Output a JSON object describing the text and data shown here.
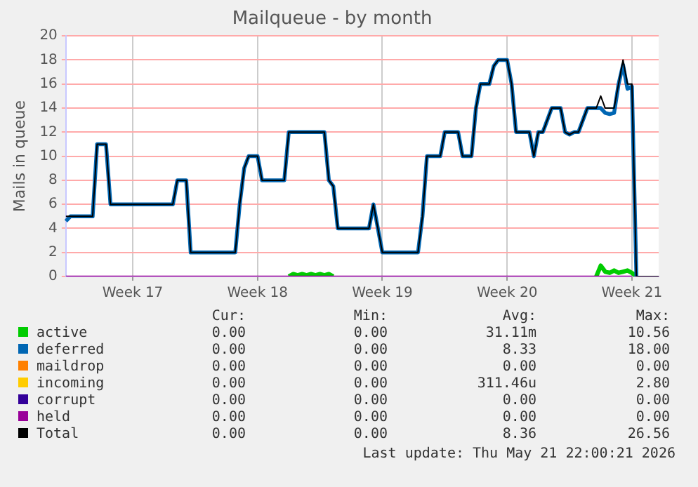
{
  "chart_data": {
    "type": "line",
    "title": "Mailqueue - by month",
    "ylabel": "Mails in queue",
    "categories": [
      null,
      null,
      null,
      null,
      null,
      null,
      null,
      null,
      null,
      null,
      null,
      null,
      null,
      null,
      null,
      "Week 17",
      null,
      null,
      null,
      null,
      null,
      null,
      null,
      null,
      null,
      null,
      null,
      null,
      null,
      null,
      null,
      null,
      null,
      null,
      null,
      null,
      null,
      null,
      null,
      null,
      null,
      null,
      null,
      "Week 18",
      null,
      null,
      null,
      null,
      null,
      null,
      null,
      null,
      null,
      null,
      null,
      null,
      null,
      null,
      null,
      null,
      null,
      null,
      null,
      null,
      null,
      null,
      null,
      null,
      null,
      null,
      null,
      "Week 19",
      null,
      null,
      null,
      null,
      null,
      null,
      null,
      null,
      null,
      null,
      null,
      null,
      null,
      null,
      null,
      null,
      null,
      null,
      null,
      null,
      null,
      null,
      null,
      null,
      null,
      null,
      null,
      "Week 20",
      null,
      null,
      null,
      null,
      null,
      null,
      null,
      null,
      null,
      null,
      null,
      null,
      null,
      null,
      null,
      null,
      null,
      null,
      null,
      null,
      null,
      null,
      null,
      null,
      null,
      null,
      null,
      "Week 21",
      null,
      null,
      null,
      null,
      null,
      null
    ],
    "ylim": [
      0,
      20
    ],
    "yticks": [
      0,
      2,
      4,
      6,
      8,
      10,
      12,
      14,
      16,
      18,
      20
    ],
    "grid": true,
    "legend": "bottom",
    "marker": "none",
    "line_style": "solid",
    "series": [
      {
        "name": "active",
        "color": "#00cc00",
        "values": [
          null,
          null,
          null,
          null,
          null,
          null,
          null,
          null,
          null,
          null,
          null,
          null,
          null,
          null,
          null,
          null,
          null,
          null,
          null,
          null,
          null,
          null,
          null,
          null,
          null,
          null,
          null,
          null,
          null,
          null,
          null,
          null,
          null,
          null,
          null,
          null,
          null,
          null,
          null,
          null,
          null,
          null,
          null,
          null,
          null,
          null,
          null,
          null,
          null,
          null,
          0,
          0.2,
          0.1,
          0.2,
          0.1,
          0.2,
          0.1,
          0.2,
          0.1,
          0.2,
          0,
          null,
          null,
          null,
          null,
          null,
          null,
          null,
          null,
          null,
          null,
          null,
          null,
          null,
          null,
          null,
          null,
          null,
          null,
          null,
          null,
          null,
          null,
          null,
          null,
          null,
          null,
          null,
          null,
          null,
          null,
          null,
          null,
          null,
          null,
          null,
          null,
          null,
          null,
          null,
          null,
          null,
          null,
          null,
          null,
          null,
          null,
          null,
          null,
          null,
          null,
          null,
          null,
          null,
          null,
          null,
          null,
          null,
          null,
          0,
          0.9,
          0.4,
          0.3,
          0.5,
          0.3,
          0.4,
          0.5,
          0.3,
          0,
          null,
          null,
          null,
          null,
          null
        ]
      },
      {
        "name": "deferred",
        "color": "#0066b3",
        "values": [
          4.6,
          5,
          5,
          5,
          5,
          5,
          5,
          11,
          11,
          11,
          6,
          6,
          6,
          6,
          6,
          6,
          6,
          6,
          6,
          6,
          6,
          6,
          6,
          6,
          6,
          8,
          8,
          8,
          2,
          2,
          2,
          2,
          2,
          2,
          2,
          2,
          2,
          2,
          2,
          6,
          9,
          10,
          10,
          10,
          8,
          8,
          8,
          8,
          8,
          8,
          12,
          12,
          12,
          12,
          12,
          12,
          12,
          12,
          12,
          8,
          7.5,
          4,
          4,
          4,
          4,
          4,
          4,
          4,
          4,
          6,
          4,
          2,
          2,
          2,
          2,
          2,
          2,
          2,
          2,
          2,
          5,
          10,
          10,
          10,
          10,
          12,
          12,
          12,
          12,
          10,
          10,
          10,
          14,
          16,
          16,
          16,
          17.5,
          18,
          18,
          18,
          16,
          12,
          12,
          12,
          12,
          10,
          12,
          12,
          13,
          14,
          14,
          14,
          12,
          11.8,
          12,
          12,
          13,
          14,
          14,
          14,
          14,
          13.6,
          13.5,
          13.6,
          16,
          17.6,
          15.6,
          15.8,
          0,
          null,
          null,
          null,
          null,
          null
        ]
      },
      {
        "name": "maildrop",
        "color": "#ff8000",
        "values": [
          null,
          null,
          null,
          null,
          null,
          null,
          null,
          null,
          null,
          null,
          null,
          null,
          null,
          null,
          null,
          null,
          null,
          null,
          null,
          null,
          null,
          null,
          null,
          null,
          null,
          null,
          null,
          null,
          null,
          null,
          null,
          null,
          null,
          null,
          null,
          null,
          null,
          null,
          null,
          null,
          null,
          null,
          null,
          null,
          null,
          null,
          null,
          null,
          null,
          null,
          null,
          null,
          null,
          null,
          null,
          null,
          null,
          null,
          null,
          null,
          null,
          null,
          null,
          null,
          null,
          null,
          null,
          null,
          null,
          null,
          null,
          null,
          null,
          null,
          null,
          null,
          null,
          null,
          null,
          null,
          null,
          null,
          null,
          null,
          null,
          null,
          null,
          null,
          null,
          null,
          null,
          null,
          null,
          null,
          null,
          null,
          null,
          null,
          null,
          null,
          null,
          null,
          null,
          null,
          null,
          null,
          null,
          null,
          null,
          null,
          null,
          null,
          null,
          null,
          null,
          null,
          null,
          null,
          null,
          null,
          null,
          null,
          null,
          null,
          null,
          null,
          null,
          null,
          null,
          null,
          null,
          null,
          null,
          null
        ]
      },
      {
        "name": "incoming",
        "color": "#ffcc00",
        "values": [
          null,
          null,
          null,
          null,
          null,
          null,
          null,
          null,
          null,
          null,
          null,
          null,
          null,
          null,
          null,
          null,
          null,
          null,
          null,
          null,
          null,
          null,
          null,
          null,
          null,
          null,
          null,
          null,
          null,
          null,
          null,
          null,
          null,
          null,
          null,
          null,
          null,
          null,
          null,
          null,
          null,
          null,
          null,
          null,
          null,
          null,
          null,
          null,
          null,
          null,
          null,
          null,
          null,
          null,
          null,
          null,
          null,
          null,
          null,
          null,
          null,
          null,
          null,
          null,
          null,
          null,
          null,
          null,
          null,
          null,
          null,
          null,
          null,
          null,
          null,
          null,
          null,
          null,
          null,
          null,
          null,
          null,
          null,
          null,
          null,
          null,
          null,
          null,
          null,
          null,
          null,
          null,
          null,
          null,
          null,
          null,
          null,
          null,
          null,
          null,
          null,
          null,
          null,
          null,
          null,
          null,
          null,
          null,
          null,
          null,
          null,
          null,
          null,
          null,
          null,
          null,
          null,
          null,
          null,
          null,
          null,
          null,
          null,
          null,
          null,
          null,
          null,
          null,
          null,
          null,
          null,
          null,
          null,
          null
        ]
      },
      {
        "name": "corrupt",
        "color": "#330099",
        "values": [
          null,
          null,
          null,
          null,
          null,
          null,
          null,
          null,
          null,
          null,
          null,
          null,
          null,
          null,
          null,
          null,
          null,
          null,
          null,
          null,
          null,
          null,
          null,
          null,
          null,
          null,
          null,
          null,
          null,
          null,
          null,
          null,
          null,
          null,
          null,
          null,
          null,
          null,
          null,
          null,
          null,
          null,
          null,
          null,
          null,
          null,
          null,
          null,
          null,
          null,
          null,
          null,
          null,
          null,
          null,
          null,
          null,
          null,
          null,
          null,
          null,
          null,
          null,
          null,
          null,
          null,
          null,
          null,
          null,
          null,
          null,
          null,
          null,
          null,
          null,
          null,
          null,
          null,
          null,
          null,
          null,
          null,
          null,
          null,
          null,
          null,
          null,
          null,
          null,
          null,
          null,
          null,
          null,
          null,
          null,
          null,
          null,
          null,
          null,
          null,
          null,
          null,
          null,
          null,
          null,
          null,
          null,
          null,
          null,
          null,
          null,
          null,
          null,
          null,
          null,
          null,
          null,
          null,
          null,
          null,
          null,
          null,
          null,
          null,
          null,
          null,
          null,
          null,
          null,
          null,
          null,
          null,
          null,
          null
        ]
      },
      {
        "name": "held",
        "color": "#990099",
        "values": [
          0,
          0,
          0,
          0,
          0,
          0,
          0,
          0,
          0,
          0,
          0,
          0,
          0,
          0,
          0,
          0,
          0,
          0,
          0,
          0,
          0,
          0,
          0,
          0,
          0,
          0,
          0,
          0,
          0,
          0,
          0,
          0,
          0,
          0,
          0,
          0,
          0,
          0,
          0,
          0,
          0,
          0,
          0,
          0,
          0,
          0,
          0,
          0,
          0,
          0,
          0,
          0,
          0,
          0,
          0,
          0,
          0,
          0,
          0,
          0,
          0,
          0,
          0,
          0,
          0,
          0,
          0,
          0,
          0,
          0,
          0,
          0,
          0,
          0,
          0,
          0,
          0,
          0,
          0,
          0,
          0,
          0,
          0,
          0,
          0,
          0,
          0,
          0,
          0,
          0,
          0,
          0,
          0,
          0,
          0,
          0,
          0,
          0,
          0,
          0,
          0,
          0,
          0,
          0,
          0,
          0,
          0,
          0,
          0,
          0,
          0,
          0,
          0,
          0,
          0,
          0,
          0,
          0,
          0,
          0,
          0,
          0,
          0,
          0,
          0,
          0,
          0,
          0,
          null,
          null,
          null,
          null,
          null,
          null
        ]
      },
      {
        "name": "Total",
        "color": "#000000",
        "values": [
          5,
          5,
          5,
          5,
          5,
          5,
          5,
          11,
          11,
          11,
          6,
          6,
          6,
          6,
          6,
          6,
          6,
          6,
          6,
          6,
          6,
          6,
          6,
          6,
          6,
          8,
          8,
          8,
          2,
          2,
          2,
          2,
          2,
          2,
          2,
          2,
          2,
          2,
          2,
          6,
          9,
          10,
          10,
          10,
          8,
          8,
          8,
          8,
          8,
          8,
          12,
          12,
          12,
          12,
          12,
          12,
          12,
          12,
          12,
          8,
          7.5,
          4,
          4,
          4,
          4,
          4,
          4,
          4,
          4,
          6,
          4,
          2,
          2,
          2,
          2,
          2,
          2,
          2,
          2,
          2,
          5,
          10,
          10,
          10,
          10,
          12,
          12,
          12,
          12,
          10,
          10,
          10,
          14,
          16,
          16,
          16,
          17.5,
          18,
          18,
          18,
          16,
          12,
          12,
          12,
          12,
          10,
          12,
          12,
          13,
          14,
          14,
          14,
          12,
          11.8,
          12,
          12,
          13,
          14,
          14,
          14,
          15,
          14,
          14,
          14,
          16,
          18,
          16,
          16,
          0,
          0,
          0,
          0,
          0,
          0
        ]
      }
    ],
    "annotations": [
      "Cur:",
      "Min:",
      "Avg:",
      "Max:",
      "0.00",
      "0.00",
      "31.11m",
      "10.56",
      "0.00",
      "0.00",
      "8.33",
      "18.00",
      "0.00",
      "0.00",
      "0.00",
      "0.00",
      "0.00",
      "0.00",
      "311.46u",
      "2.80",
      "0.00",
      "0.00",
      "0.00",
      "0.00",
      "0.00",
      "0.00",
      "0.00",
      "0.00",
      "0.00",
      "0.00",
      "8.36",
      "26.56",
      "Last update: Thu May 21 22:00:21 2026"
    ]
  }
}
